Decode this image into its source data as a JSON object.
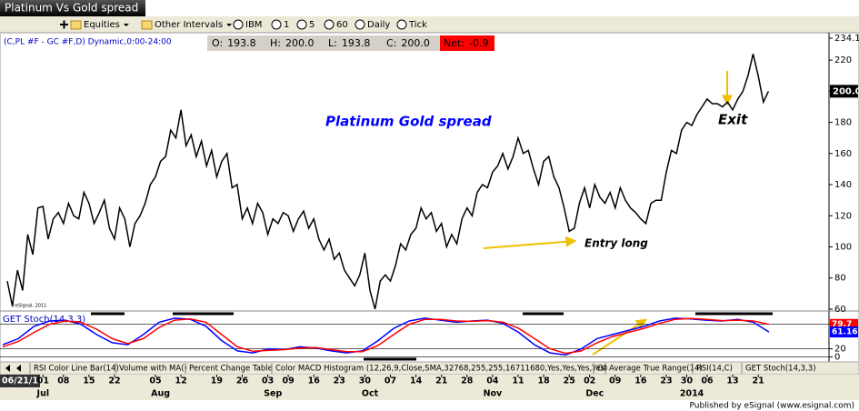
{
  "window_title": "Platinum Vs Gold spread",
  "toolbar": [
    "Equities",
    "Other Intervals",
    "IBM",
    "1",
    "5",
    "60",
    "Daily",
    "Tick"
  ],
  "symbol": "(C,PL #F - GC #F,D) Dynamic,0:00-24:00",
  "ohlc": [
    {
      "label": "O:",
      "value": "193.8"
    },
    {
      "label": "H:",
      "value": "200.0"
    },
    {
      "label": "L:",
      "value": "193.8"
    },
    {
      "label": "C:",
      "value": "200.0"
    }
  ],
  "net": {
    "label": "Net:",
    "value": "-0.9"
  },
  "copyright": "©eSignal, 2011",
  "tabs": [
    "RSI Color Line Bar(14)",
    "Volume with MA()",
    "Percent Change Table",
    "Color MACD Histogram (12,26,9,Close,SMA,32768,255,255,16711680,Yes,Yes,Yes,Yes)",
    "OI",
    "Average True Range(14)",
    "RSI(14,C)",
    "GET Stoch(14,3,3)"
  ],
  "footer": "Published by eSignal (www.esignal.com)",
  "chart_data": [
    {
      "type": "line",
      "title": "Platinum Gold spread",
      "annotations": [
        "Entry long",
        "Exit"
      ],
      "color": "#000000",
      "grid": false,
      "categories": [
        "06/21/13",
        null,
        null,
        null,
        null,
        null,
        null,
        "01",
        null,
        null,
        null,
        "08",
        null,
        null,
        null,
        null,
        "15",
        null,
        null,
        null,
        null,
        "22",
        null,
        null,
        null,
        null,
        null,
        null,
        null,
        "05",
        null,
        null,
        null,
        null,
        "12",
        null,
        null,
        null,
        null,
        null,
        null,
        "19",
        null,
        null,
        null,
        null,
        "26",
        null,
        null,
        null,
        null,
        "03",
        null,
        null,
        null,
        "09",
        null,
        null,
        null,
        null,
        "16",
        null,
        null,
        null,
        null,
        "23",
        null,
        null,
        null,
        null,
        "30",
        null,
        null,
        null,
        null,
        "07",
        null,
        null,
        null,
        null,
        "14",
        null,
        null,
        null,
        null,
        "21",
        null,
        null,
        null,
        null,
        "28",
        null,
        null,
        null,
        null,
        "04",
        null,
        null,
        null,
        null,
        "11",
        null,
        null,
        null,
        null,
        "18",
        null,
        null,
        null,
        null,
        "25",
        null,
        null,
        null,
        "02",
        null,
        null,
        null,
        null,
        "09",
        null,
        null,
        null,
        null,
        "16",
        null,
        null,
        null,
        null,
        "23",
        null,
        null,
        null,
        "30",
        null,
        null,
        null,
        "06",
        null,
        null,
        null,
        null,
        "13",
        null,
        null,
        null,
        null,
        "21",
        null,
        null
      ],
      "months": [
        null,
        null,
        null,
        null,
        null,
        null,
        null,
        "Jul",
        null,
        null,
        null,
        null,
        null,
        null,
        null,
        null,
        null,
        null,
        null,
        null,
        null,
        null,
        null,
        null,
        null,
        null,
        null,
        null,
        null,
        null,
        "Aug",
        null,
        null,
        null,
        null,
        null,
        null,
        null,
        null,
        null,
        null,
        null,
        null,
        null,
        null,
        null,
        null,
        null,
        null,
        null,
        null,
        null,
        "Sep",
        null,
        null,
        null,
        null,
        null,
        null,
        null,
        null,
        null,
        null,
        null,
        null,
        null,
        null,
        null,
        null,
        null,
        null,
        "Oct",
        null,
        null,
        null,
        null,
        null,
        null,
        null,
        null,
        null,
        null,
        null,
        null,
        null,
        null,
        null,
        null,
        null,
        null,
        null,
        null,
        null,
        null,
        null,
        "Nov",
        null,
        null,
        null,
        null,
        null,
        null,
        null,
        null,
        null,
        null,
        null,
        null,
        null,
        null,
        null,
        null,
        null,
        null,
        null,
        "Dec",
        null,
        null,
        null,
        null,
        null,
        null,
        null,
        null,
        null,
        null,
        null,
        null,
        null,
        null,
        null,
        null,
        null,
        null,
        "2014",
        null,
        null,
        null,
        null,
        null,
        null,
        null,
        null,
        null,
        null,
        null,
        null,
        null,
        null,
        null
      ],
      "values": [
        78,
        62,
        85,
        72,
        108,
        95,
        125,
        126,
        105,
        118,
        122,
        115,
        128,
        120,
        118,
        135,
        128,
        115,
        122,
        130,
        112,
        105,
        125,
        118,
        100,
        115,
        120,
        128,
        140,
        145,
        155,
        158,
        175,
        170,
        188,
        165,
        172,
        158,
        168,
        152,
        162,
        145,
        155,
        160,
        138,
        140,
        118,
        125,
        115,
        128,
        122,
        108,
        118,
        115,
        122,
        120,
        110,
        118,
        123,
        112,
        118,
        105,
        98,
        105,
        92,
        96,
        85,
        80,
        75,
        82,
        96,
        72,
        60,
        78,
        82,
        78,
        88,
        102,
        98,
        108,
        112,
        125,
        118,
        122,
        110,
        115,
        100,
        108,
        102,
        118,
        125,
        120,
        135,
        140,
        138,
        148,
        152,
        160,
        150,
        158,
        170,
        160,
        162,
        150,
        140,
        155,
        158,
        145,
        138,
        125,
        110,
        112,
        128,
        138,
        125,
        140,
        132,
        128,
        135,
        125,
        138,
        130,
        125,
        122,
        118,
        115,
        128,
        130,
        130,
        148,
        162,
        160,
        175,
        180,
        178,
        185,
        190,
        195,
        192,
        192,
        190,
        193,
        188,
        195,
        200,
        210,
        224,
        210,
        193,
        200
      ],
      "last_label": "200.0",
      "ylim": [
        58.8,
        234.1
      ],
      "yticks": [
        60,
        80,
        100,
        120,
        140,
        160,
        180,
        200,
        220,
        234.1
      ]
    },
    {
      "type": "line",
      "title": "GET Stoch(14,3,3)",
      "grid": true,
      "series": [
        {
          "color": "#0000ff",
          "values": [
            30,
            45,
            75,
            88,
            90,
            80,
            55,
            35,
            30,
            55,
            85,
            95,
            92,
            75,
            40,
            15,
            10,
            20,
            18,
            25,
            22,
            15,
            10,
            15,
            40,
            70,
            88,
            95,
            90,
            85,
            88,
            90,
            82,
            60,
            30,
            10,
            5,
            20,
            45,
            55,
            65,
            75,
            88,
            95,
            93,
            90,
            88,
            92,
            85,
            61.16
          ]
        },
        {
          "color": "#ff0000",
          "values": [
            25,
            38,
            60,
            80,
            88,
            85,
            68,
            45,
            33,
            45,
            72,
            90,
            93,
            85,
            55,
            25,
            14,
            16,
            18,
            22,
            23,
            18,
            13,
            13,
            28,
            55,
            80,
            92,
            92,
            88,
            87,
            89,
            85,
            70,
            45,
            20,
            9,
            15,
            35,
            50,
            60,
            70,
            82,
            92,
            94,
            92,
            89,
            90,
            88,
            79.7
          ]
        }
      ],
      "ylim": [
        -12,
        108
      ],
      "yticks": [
        0,
        20,
        80
      ]
    }
  ]
}
